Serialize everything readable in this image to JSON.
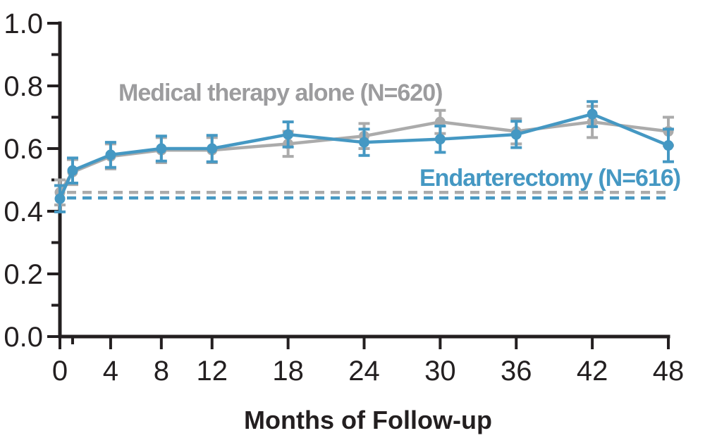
{
  "chart_data": {
    "type": "line",
    "description": "Event-rate curves with error bars comparing two treatment groups over follow-up",
    "xlabel": "Months of Follow-up",
    "ylabel": "",
    "xlim": [
      0,
      48
    ],
    "ylim": [
      0,
      1
    ],
    "grid": false,
    "axis_color": "#231F20",
    "xticks": {
      "values": [
        0,
        4,
        8,
        12,
        18,
        24,
        30,
        36,
        42,
        48
      ],
      "labels": [
        "0",
        "4",
        "8",
        "12",
        "18",
        "24",
        "30",
        "36",
        "42",
        "48"
      ],
      "minor": [
        1
      ]
    },
    "yticks": {
      "values": [
        0.0,
        0.2,
        0.4,
        0.6,
        0.8,
        1.0
      ],
      "labels": [
        "0.0",
        "0.2",
        "0.4",
        "0.6",
        "0.8",
        "1.0"
      ],
      "minor": [
        0.1,
        0.3,
        0.5,
        0.7,
        0.9
      ]
    },
    "x": [
      0,
      1,
      4,
      8,
      12,
      18,
      24,
      30,
      36,
      42,
      48
    ],
    "series": [
      {
        "name": "Medical therapy alone (N=620)",
        "n": 620,
        "color": "#ABABAB",
        "label_color": "#9C9C9E",
        "values": [
          0.46,
          0.525,
          0.575,
          0.595,
          0.595,
          0.615,
          0.64,
          0.685,
          0.655,
          0.685,
          0.655
        ],
        "err": [
          0.04,
          0.04,
          0.04,
          0.04,
          0.04,
          0.04,
          0.04,
          0.037,
          0.04,
          0.05,
          0.045
        ],
        "baseline": 0.46
      },
      {
        "name": "Endarterectomy (N=616)",
        "n": 616,
        "color": "#4598C3",
        "label_color": "#4598C3",
        "values": [
          0.44,
          0.53,
          0.58,
          0.6,
          0.6,
          0.645,
          0.62,
          0.63,
          0.645,
          0.71,
          0.61
        ],
        "err": [
          0.042,
          0.04,
          0.04,
          0.04,
          0.042,
          0.04,
          0.042,
          0.042,
          0.042,
          0.04,
          0.052
        ],
        "baseline": 0.4425
      }
    ],
    "baseline_note": "Horizontal dashed reference lines extend each group's month-0 value across the plot"
  }
}
